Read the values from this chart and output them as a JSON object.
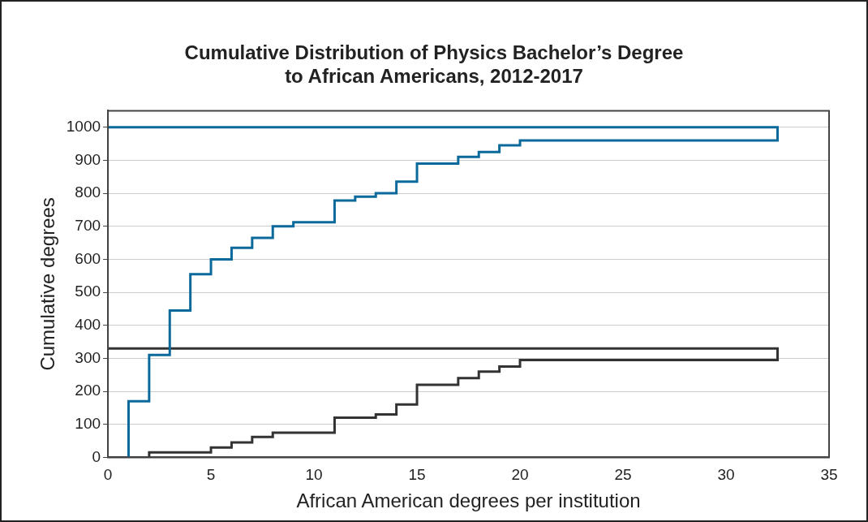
{
  "chart_data": {
    "type": "step",
    "title": "Cumulative Distribution of Physics Bachelor’s Degree\nto African Americans, 2012-2017",
    "xlabel": "African American degrees per institution",
    "ylabel": "Cumulative degrees",
    "series": [
      {
        "color": "#0b6a9b",
        "x": [
          1,
          1,
          2,
          3,
          4,
          5,
          6,
          7,
          8,
          9,
          11,
          12,
          13,
          14,
          15,
          17,
          18,
          19,
          20,
          32.5,
          32.5,
          0
        ],
        "values": [
          0,
          170,
          310,
          445,
          555,
          600,
          635,
          665,
          700,
          712,
          778,
          790,
          800,
          835,
          890,
          910,
          925,
          945,
          960,
          960,
          1000,
          1000
        ]
      },
      {
        "color": "#333333",
        "x": [
          0,
          2,
          5,
          6,
          7,
          8,
          11,
          13,
          14,
          15,
          17,
          18,
          19,
          20,
          32.5,
          32.5,
          0
        ],
        "values": [
          0,
          15,
          30,
          45,
          62,
          75,
          120,
          130,
          160,
          220,
          240,
          260,
          275,
          295,
          295,
          330,
          330
        ]
      }
    ],
    "xlim": [
      0,
      35
    ],
    "xticks": [
      0,
      5,
      10,
      15,
      20,
      25,
      30,
      35
    ],
    "ylim": [
      0,
      1050
    ],
    "yticks": [
      0,
      100,
      200,
      300,
      400,
      500,
      600,
      700,
      800,
      900,
      1000
    ],
    "grid": "y",
    "legend": false,
    "marker": "none",
    "line_style": "solid"
  }
}
